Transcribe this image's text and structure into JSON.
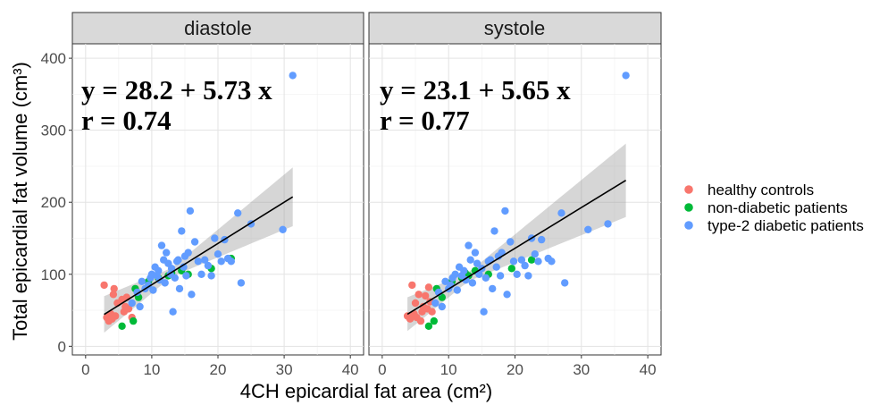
{
  "chart_data": {
    "type": "scatter",
    "xlabel": "4CH epicardial fat area (cm²)",
    "ylabel": "Total epicardial fat volume (cm³)",
    "xlim": [
      -2,
      42
    ],
    "ylim": [
      -12,
      420
    ],
    "x_ticks": [
      "0",
      "10",
      "20",
      "30",
      "40"
    ],
    "y_ticks": [
      "0",
      "100",
      "200",
      "300",
      "400"
    ],
    "x_tick_values": [
      0,
      10,
      20,
      30,
      40
    ],
    "y_tick_values": [
      0,
      100,
      200,
      300,
      400
    ],
    "grid": true,
    "legend_position": "right",
    "legend": [
      {
        "label": "healthy controls",
        "color": "#F8766D"
      },
      {
        "label": "non-diabetic patients",
        "color": "#00BA38"
      },
      {
        "label": "type-2 diabetic patients",
        "color": "#619CFF"
      }
    ],
    "panels": [
      {
        "title": "diastole",
        "equation": "y = 28.2 + 5.73 x",
        "r": "r = 0.74",
        "fit": {
          "intercept": 28.2,
          "slope": 5.73,
          "x_range": [
            2.8,
            31.3
          ]
        },
        "series": [
          {
            "name": "healthy controls",
            "points": [
              [
                2.8,
                85
              ],
              [
                3.2,
                40
              ],
              [
                3.5,
                35
              ],
              [
                3.8,
                45
              ],
              [
                4.0,
                38
              ],
              [
                4.2,
                72
              ],
              [
                4.3,
                80
              ],
              [
                4.5,
                42
              ],
              [
                4.8,
                60
              ],
              [
                5.5,
                65
              ],
              [
                5.8,
                48
              ],
              [
                6.0,
                55
              ],
              [
                6.2,
                68
              ],
              [
                6.5,
                52
              ],
              [
                7.0,
                40
              ]
            ]
          },
          {
            "name": "non-diabetic patients",
            "points": [
              [
                5.5,
                28
              ],
              [
                7.2,
                35
              ],
              [
                7.5,
                80
              ],
              [
                8.0,
                68
              ],
              [
                9.5,
                90
              ],
              [
                11.0,
                95
              ],
              [
                12.5,
                98
              ],
              [
                13.0,
                102
              ],
              [
                14.5,
                105
              ],
              [
                15.5,
                100
              ],
              [
                19.0,
                108
              ],
              [
                22.0,
                122
              ]
            ]
          },
          {
            "name": "type-2 diabetic patients",
            "points": [
              [
                7.0,
                60
              ],
              [
                7.8,
                75
              ],
              [
                8.2,
                55
              ],
              [
                8.5,
                90
              ],
              [
                9.0,
                80
              ],
              [
                9.5,
                85
              ],
              [
                9.8,
                95
              ],
              [
                10.0,
                100
              ],
              [
                10.2,
                78
              ],
              [
                10.5,
                110
              ],
              [
                10.8,
                98
              ],
              [
                11.0,
                105
              ],
              [
                11.2,
                92
              ],
              [
                11.5,
                140
              ],
              [
                11.8,
                120
              ],
              [
                12.0,
                88
              ],
              [
                12.2,
                130
              ],
              [
                12.5,
                115
              ],
              [
                12.8,
                100
              ],
              [
                13.0,
                108
              ],
              [
                13.2,
                48
              ],
              [
                13.5,
                95
              ],
              [
                13.8,
                118
              ],
              [
                14.0,
                120
              ],
              [
                14.2,
                80
              ],
              [
                14.5,
                160
              ],
              [
                14.8,
                110
              ],
              [
                15.0,
                125
              ],
              [
                15.2,
                98
              ],
              [
                15.5,
                130
              ],
              [
                15.8,
                188
              ],
              [
                16.0,
                72
              ],
              [
                16.5,
                145
              ],
              [
                17.0,
                118
              ],
              [
                17.5,
                100
              ],
              [
                18.0,
                120
              ],
              [
                18.5,
                112
              ],
              [
                19.0,
                98
              ],
              [
                19.5,
                150
              ],
              [
                20.0,
                128
              ],
              [
                20.5,
                118
              ],
              [
                21.0,
                148
              ],
              [
                21.5,
                122
              ],
              [
                22.0,
                118
              ],
              [
                23.0,
                185
              ],
              [
                23.5,
                88
              ],
              [
                25.0,
                170
              ],
              [
                29.8,
                162
              ],
              [
                31.3,
                376
              ]
            ]
          }
        ]
      },
      {
        "title": "systole",
        "equation": "y = 23.1 + 5.65 x",
        "r": "r = 0.77",
        "fit": {
          "intercept": 23.1,
          "slope": 5.65,
          "x_range": [
            3.8,
            36.7
          ]
        },
        "series": [
          {
            "name": "healthy controls",
            "points": [
              [
                3.8,
                42
              ],
              [
                4.2,
                38
              ],
              [
                4.5,
                85
              ],
              [
                4.8,
                45
              ],
              [
                5.0,
                60
              ],
              [
                5.2,
                40
              ],
              [
                5.5,
                72
              ],
              [
                5.8,
                35
              ],
              [
                6.0,
                48
              ],
              [
                6.2,
                55
              ],
              [
                6.5,
                70
              ],
              [
                6.8,
                52
              ],
              [
                7.0,
                82
              ],
              [
                7.2,
                62
              ],
              [
                7.5,
                48
              ]
            ]
          },
          {
            "name": "non-diabetic patients",
            "points": [
              [
                7.0,
                28
              ],
              [
                7.8,
                35
              ],
              [
                8.2,
                80
              ],
              [
                9.0,
                68
              ],
              [
                10.5,
                90
              ],
              [
                12.0,
                95
              ],
              [
                12.5,
                102
              ],
              [
                13.0,
                98
              ],
              [
                14.0,
                105
              ],
              [
                16.0,
                100
              ],
              [
                19.5,
                108
              ],
              [
                22.5,
                120
              ]
            ]
          },
          {
            "name": "type-2 diabetic patients",
            "points": [
              [
                8.0,
                60
              ],
              [
                8.5,
                75
              ],
              [
                9.0,
                55
              ],
              [
                9.5,
                90
              ],
              [
                10.0,
                80
              ],
              [
                10.3,
                85
              ],
              [
                10.6,
                95
              ],
              [
                11.0,
                100
              ],
              [
                11.3,
                78
              ],
              [
                11.6,
                110
              ],
              [
                12.0,
                98
              ],
              [
                12.3,
                105
              ],
              [
                12.6,
                92
              ],
              [
                13.0,
                140
              ],
              [
                13.3,
                120
              ],
              [
                13.6,
                88
              ],
              [
                14.0,
                130
              ],
              [
                14.3,
                115
              ],
              [
                14.6,
                100
              ],
              [
                15.0,
                108
              ],
              [
                15.3,
                48
              ],
              [
                15.6,
                95
              ],
              [
                16.0,
                118
              ],
              [
                16.3,
                120
              ],
              [
                16.6,
                80
              ],
              [
                16.9,
                160
              ],
              [
                17.2,
                110
              ],
              [
                17.5,
                125
              ],
              [
                17.8,
                98
              ],
              [
                18.0,
                130
              ],
              [
                18.5,
                188
              ],
              [
                18.8,
                72
              ],
              [
                19.3,
                145
              ],
              [
                19.8,
                118
              ],
              [
                20.3,
                100
              ],
              [
                21.0,
                120
              ],
              [
                21.5,
                112
              ],
              [
                22.0,
                98
              ],
              [
                22.5,
                150
              ],
              [
                23.0,
                128
              ],
              [
                23.5,
                118
              ],
              [
                24.0,
                148
              ],
              [
                25.0,
                122
              ],
              [
                25.5,
                118
              ],
              [
                27.0,
                185
              ],
              [
                27.5,
                88
              ],
              [
                31.0,
                162
              ],
              [
                34.0,
                170
              ],
              [
                36.7,
                376
              ]
            ]
          }
        ]
      }
    ]
  }
}
